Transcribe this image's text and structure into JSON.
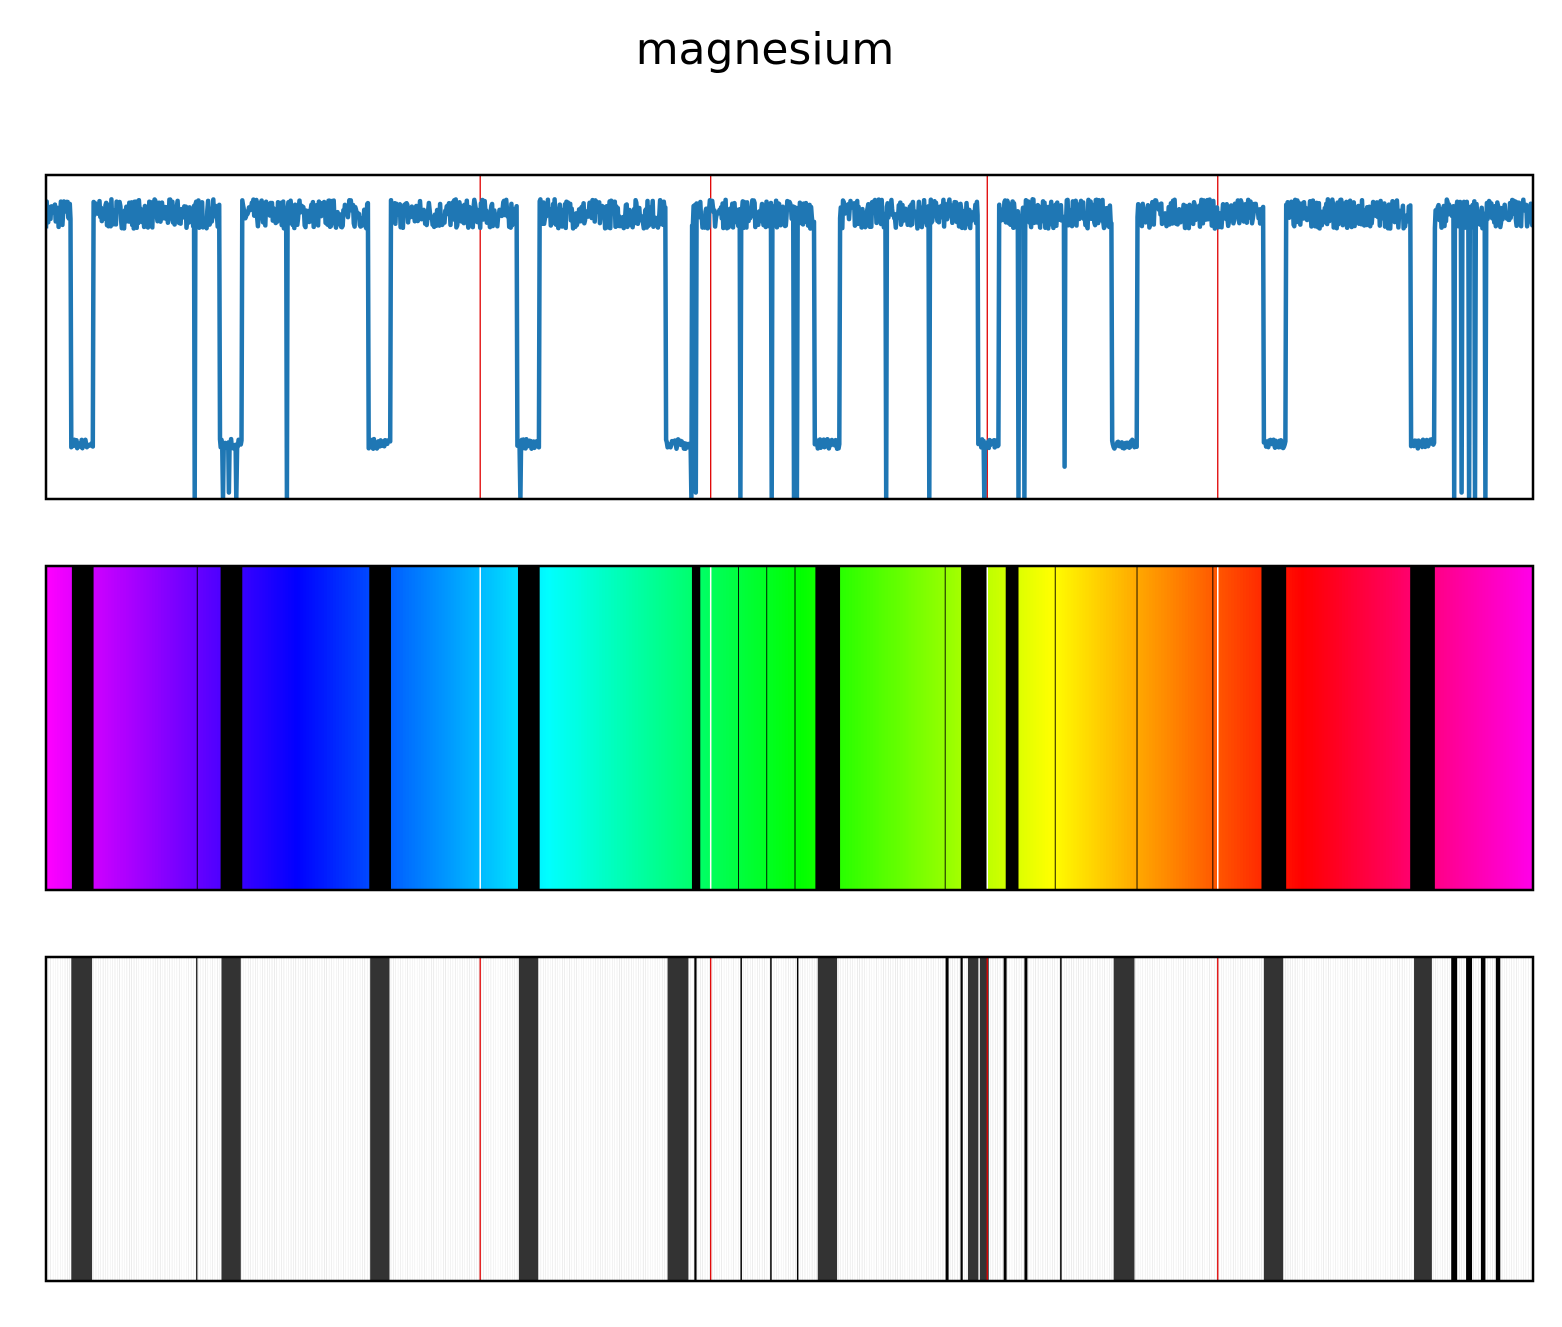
{
  "title": "magnesium",
  "colors": {
    "signal": "#1f77b4",
    "marker": "#e00000",
    "event_dark": "#333333",
    "frame": "#000000"
  },
  "chart_data": [
    {
      "type": "line",
      "panel": "signal",
      "xlim": [
        0,
        1000
      ],
      "ylim": [
        0,
        1
      ],
      "grid": false,
      "axes_ticks": "none",
      "baseline_level": 0.88,
      "low_level": 0.17,
      "dwells": [
        [
          17,
          32
        ],
        [
          117,
          132
        ],
        [
          217,
          232
        ],
        [
          317,
          332
        ],
        [
          417,
          434
        ],
        [
          517,
          534
        ],
        [
          627,
          641
        ],
        [
          717,
          734
        ],
        [
          819,
          834
        ],
        [
          918,
          934
        ]
      ],
      "spikes": [
        [
          100,
          0.0
        ],
        [
          119,
          0.0
        ],
        [
          123,
          0.02
        ],
        [
          128,
          0.0
        ],
        [
          162,
          0.0
        ],
        [
          319,
          0.0
        ],
        [
          434,
          0.0
        ],
        [
          437,
          0.02
        ],
        [
          467,
          0.0
        ],
        [
          488,
          0.0
        ],
        [
          503,
          0.0
        ],
        [
          505,
          0.0
        ],
        [
          565,
          0.0
        ],
        [
          594,
          0.0
        ],
        [
          631,
          0.0
        ],
        [
          654,
          0.0
        ],
        [
          658,
          0.0
        ],
        [
          685,
          0.1
        ],
        [
          947,
          0.0
        ],
        [
          952,
          0.02
        ],
        [
          957,
          0.0
        ],
        [
          961,
          0.0
        ],
        [
          968,
          0.0
        ]
      ],
      "markers": [
        292,
        447,
        633,
        788
      ]
    },
    {
      "type": "bar",
      "panel": "spectrum",
      "xlim": [
        0,
        1000
      ],
      "description_colormap": "gist_rainbow_r",
      "segments": [
        [
          0,
          17
        ],
        [
          32,
          101
        ],
        [
          102,
          117
        ],
        [
          132,
          163
        ],
        [
          163,
          217
        ],
        [
          232,
          292
        ],
        [
          292,
          317
        ],
        [
          332,
          434
        ],
        [
          440,
          465
        ],
        [
          466,
          484
        ],
        [
          485,
          503
        ],
        [
          504,
          517
        ],
        [
          534,
          604
        ],
        [
          605,
          615
        ],
        [
          633,
          641
        ],
        [
          641,
          645
        ],
        [
          654,
          678
        ],
        [
          679,
          733
        ],
        [
          734,
          784
        ],
        [
          785,
          817
        ],
        [
          834,
          917
        ],
        [
          934,
          1000
        ]
      ],
      "dividers_white": [
        292,
        447,
        633,
        788
      ]
    },
    {
      "type": "bar",
      "panel": "events",
      "xlim": [
        0,
        1000
      ],
      "background_hatch": "light-grey",
      "dark_bands": [
        [
          17,
          31
        ],
        [
          118,
          131
        ],
        [
          218,
          231
        ],
        [
          318,
          331
        ],
        [
          418,
          432
        ],
        [
          519,
          532
        ],
        [
          620,
          627
        ],
        [
          628,
          634
        ],
        [
          718,
          732
        ],
        [
          819,
          832
        ],
        [
          920,
          932
        ]
      ],
      "black_lines": [
        [
          101,
          101.6
        ],
        [
          436,
          437.5
        ],
        [
          467,
          468
        ],
        [
          487,
          488
        ],
        [
          505,
          506
        ],
        [
          605,
          607
        ],
        [
          615,
          616.5
        ],
        [
          644,
          646
        ],
        [
          658,
          660
        ],
        [
          682,
          683
        ],
        [
          945,
          949
        ],
        [
          955,
          959
        ],
        [
          965,
          968
        ],
        [
          975,
          978
        ]
      ],
      "markers": [
        292,
        447,
        633,
        788
      ]
    }
  ]
}
